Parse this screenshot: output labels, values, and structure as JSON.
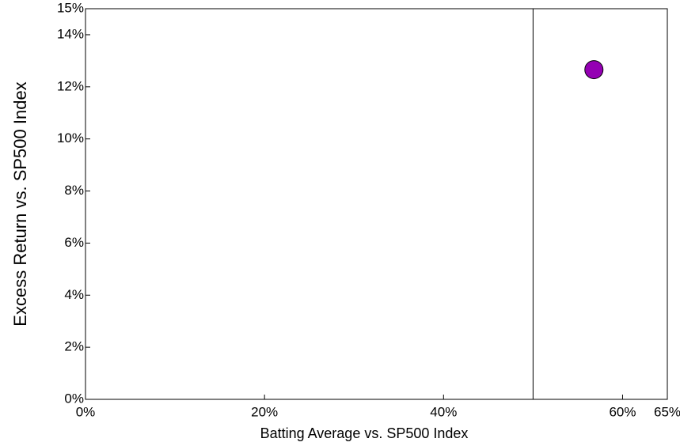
{
  "chart_data": {
    "type": "scatter",
    "x_label": "Batting Average vs. SP500 Index",
    "y_label": "Excess Return vs. SP500 Index",
    "xlim": [
      0,
      65
    ],
    "ylim": [
      0,
      15
    ],
    "xticks": [
      {
        "value": 0,
        "label": "0%"
      },
      {
        "value": 20,
        "label": "20%"
      },
      {
        "value": 40,
        "label": "40%"
      },
      {
        "value": 60,
        "label": "60%"
      },
      {
        "value": 65,
        "label": "65%"
      }
    ],
    "yticks": [
      {
        "value": 0,
        "label": "0%"
      },
      {
        "value": 2,
        "label": "2%"
      },
      {
        "value": 4,
        "label": "4%"
      },
      {
        "value": 6,
        "label": "6%"
      },
      {
        "value": 8,
        "label": "8%"
      },
      {
        "value": 10,
        "label": "10%"
      },
      {
        "value": 12,
        "label": "12%"
      },
      {
        "value": 14,
        "label": "14%"
      },
      {
        "value": 15,
        "label": "15%"
      }
    ],
    "reference_x": 50,
    "series": [
      {
        "color": "#9400b3",
        "x": [
          56.8
        ],
        "values": [
          12.66
        ]
      }
    ]
  }
}
